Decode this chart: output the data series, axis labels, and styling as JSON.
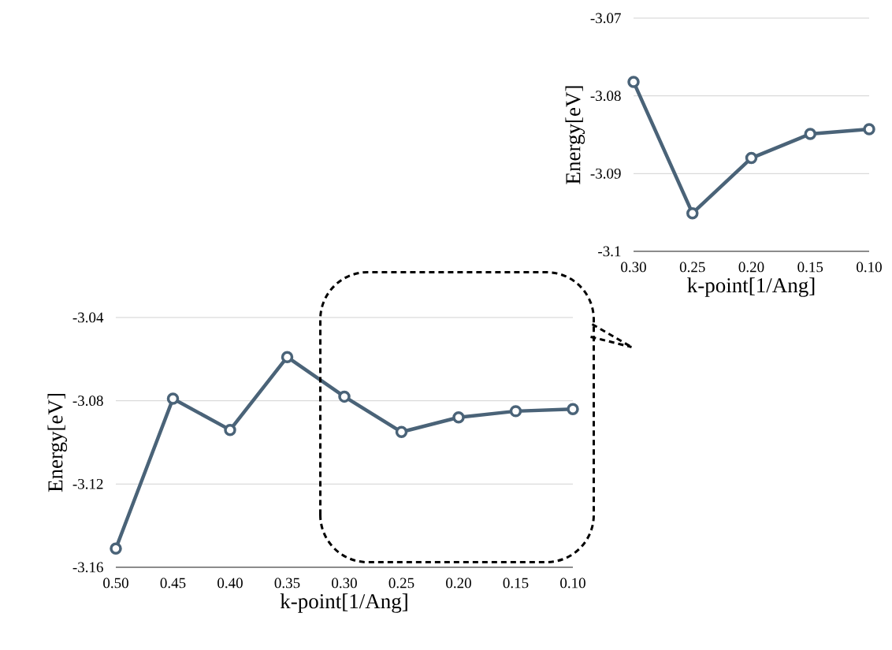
{
  "chart_data": [
    {
      "type": "line",
      "categories": [
        "0.50",
        "0.45",
        "0.40",
        "0.35",
        "0.30",
        "0.25",
        "0.20",
        "0.15",
        "0.10"
      ],
      "values": [
        -3.151,
        -3.079,
        -3.094,
        -3.059,
        -3.078,
        -3.095,
        -3.088,
        -3.085,
        -3.084
      ],
      "color": "#4a6378",
      "ylim": [
        -3.16,
        -3.04
      ],
      "yticks": [
        -3.16,
        -3.12,
        -3.08,
        -3.04
      ],
      "xlabel": "k-point[1/Ang]",
      "ylabel": "Energy[eV]",
      "grid": "y",
      "marker": "circle"
    },
    {
      "type": "line",
      "categories": [
        "0.30",
        "0.25",
        "0.20",
        "0.15",
        "0.10"
      ],
      "values": [
        -3.0782,
        -3.0951,
        -3.088,
        -3.0849,
        -3.0843
      ],
      "color": "#4a6378",
      "ylim": [
        -3.1,
        -3.07
      ],
      "yticks": [
        -3.1,
        -3.09,
        -3.08,
        -3.07
      ],
      "xlabel": "k-point[1/Ang]",
      "ylabel": "Energy[eV]",
      "grid": "y",
      "marker": "circle"
    }
  ]
}
